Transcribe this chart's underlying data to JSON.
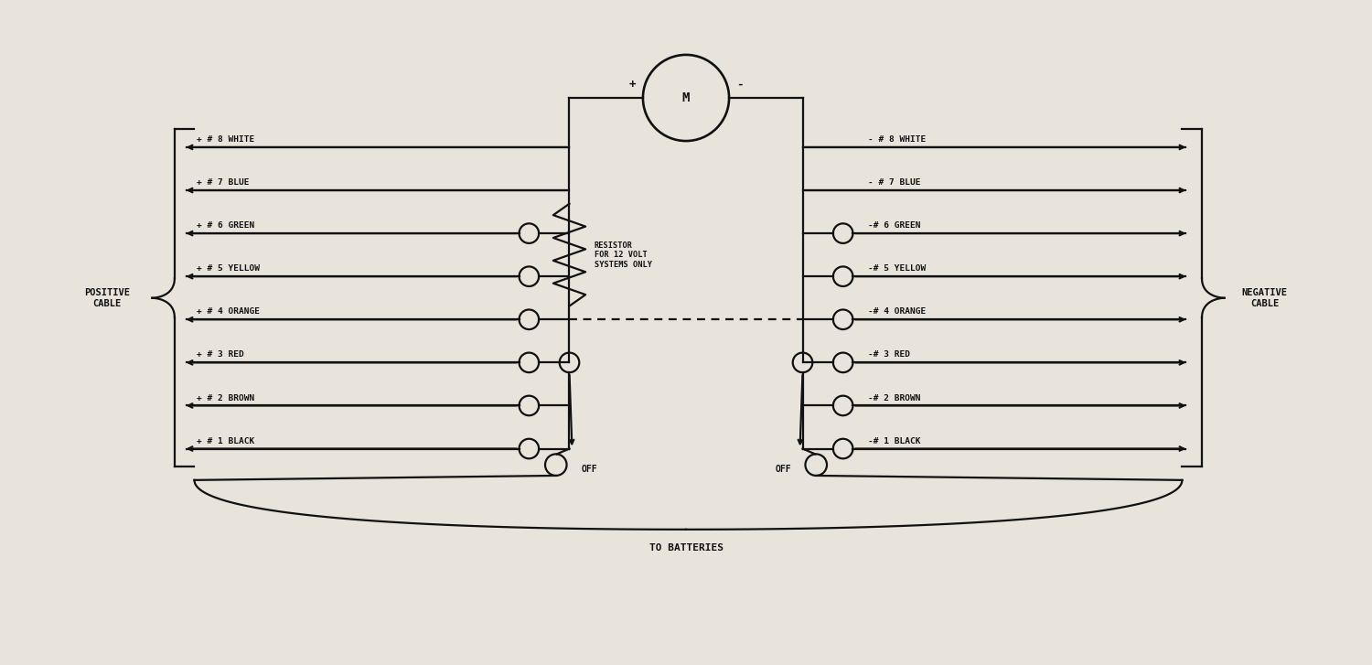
{
  "bg_color": "#e8e4dc",
  "line_color": "#111111",
  "text_color": "#111111",
  "pos_labels": [
    "+ # 8 WHITE",
    "+ # 7 BLUE",
    "+ # 6 GREEN",
    "+ # 5 YELLOW",
    "+ # 4 ORANGE",
    "+ # 3 RED",
    "+ # 2 BROWN",
    "+ # 1 BLACK"
  ],
  "neg_labels": [
    "- # 8 WHITE",
    "- # 7 BLUE",
    "-# 6 GREEN",
    "-# 5 YELLOW",
    "-# 4 ORANGE",
    "-# 3 RED",
    "-# 2 BROWN",
    "-# 1 BLACK"
  ],
  "pos_label": "POSITIVE\nCABLE",
  "neg_label": "NEGATIVE\nCABLE",
  "resistor_text": "RESISTOR\nFOR 12 VOLT\nSYSTEMS ONLY",
  "batteries_text": "TO BATTERIES",
  "off_text": "OFF",
  "meter_label": "M",
  "plus_label": "+",
  "minus_label": "-"
}
